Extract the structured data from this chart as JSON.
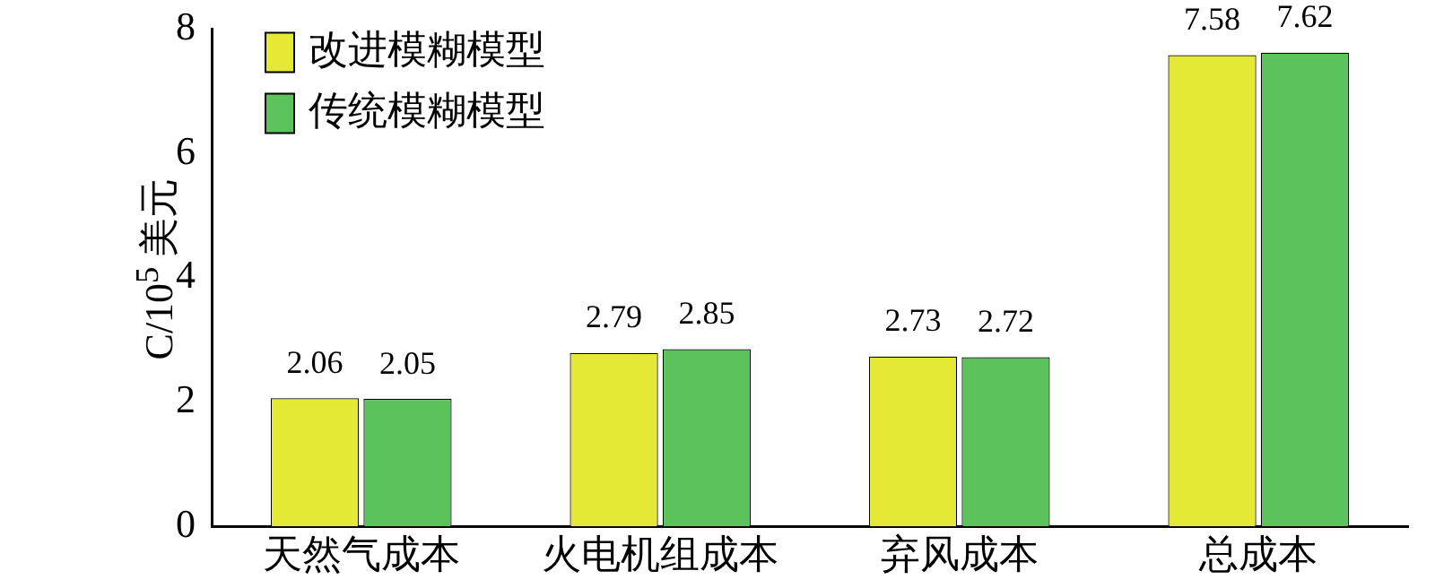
{
  "chart_data": {
    "type": "bar",
    "ylabel": "C/10$^{5}$ 美元",
    "categories": [
      "天然气成本",
      "火电机组成本",
      "弃风成本",
      "总成本"
    ],
    "series": [
      {
        "name": "改进模糊模型",
        "color": "#e5e835",
        "values": [
          2.06,
          2.79,
          2.73,
          7.58
        ]
      },
      {
        "name": "传统模糊模型",
        "color": "#5cc35c",
        "values": [
          2.05,
          2.85,
          2.72,
          7.62
        ]
      }
    ],
    "ylim": [
      0,
      8
    ],
    "yticks": [
      0,
      2,
      4,
      6,
      8
    ],
    "grid": false,
    "legend": "top left",
    "data_labels": true
  }
}
